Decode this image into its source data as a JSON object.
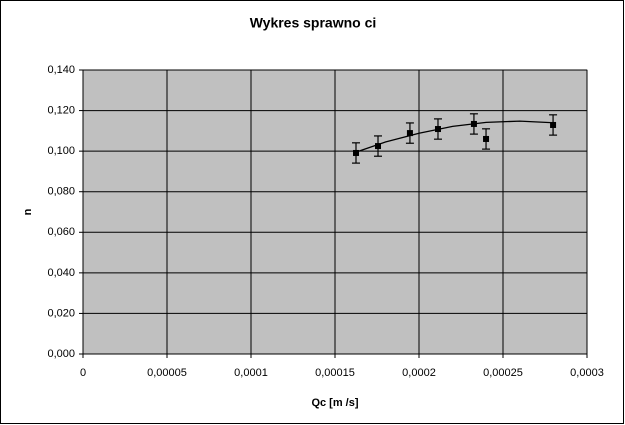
{
  "chart_data": {
    "type": "scatter",
    "title": "Wykres sprawno  ci",
    "x_label": "Qc [m /s]",
    "y_label": "n",
    "xlim": [
      0,
      0.0003
    ],
    "ylim": [
      0,
      0.14
    ],
    "xticks": [
      0,
      {
        "value": 5e-05,
        "label": "0,00005"
      },
      {
        "value": 0.0001,
        "label": "0,0001"
      },
      {
        "value": 0.00015,
        "label": "0,00015"
      },
      {
        "value": 0.0002,
        "label": "0,0002"
      },
      {
        "value": 0.00025,
        "label": "0,00025"
      },
      {
        "value": 0.0003,
        "label": "0,0003"
      }
    ],
    "yticks": [
      {
        "value": 0,
        "label": "0,000"
      },
      {
        "value": 0.02,
        "label": "0,020"
      },
      {
        "value": 0.04,
        "label": "0,040"
      },
      {
        "value": 0.06,
        "label": "0,060"
      },
      {
        "value": 0.08,
        "label": "0,080"
      },
      {
        "value": 0.1,
        "label": "0,100"
      },
      {
        "value": 0.12,
        "label": "0,120"
      },
      {
        "value": 0.14,
        "label": "0,140"
      }
    ],
    "grid": true,
    "plot_background": "#c0c0c0",
    "series": [
      {
        "color": "#000000",
        "x": [
          0.0001625,
          0.0001756,
          0.0001946,
          0.0002113,
          0.0002327,
          0.0002399,
          0.0002798
        ],
        "values": [
          0.0991,
          0.1025,
          0.1089,
          0.1109,
          0.1134,
          0.106,
          0.1129
        ],
        "errors": [
          0.005,
          0.005,
          0.005,
          0.005,
          0.005,
          0.005,
          0.005
        ]
      }
    ],
    "trendline": {
      "color": "#000000",
      "x": [
        0.0001625,
        0.00018,
        0.0002,
        0.00022,
        0.00024,
        0.00026,
        0.00028
      ],
      "values": [
        0.0995,
        0.1045,
        0.1088,
        0.1122,
        0.1142,
        0.1148,
        0.114
      ]
    }
  }
}
